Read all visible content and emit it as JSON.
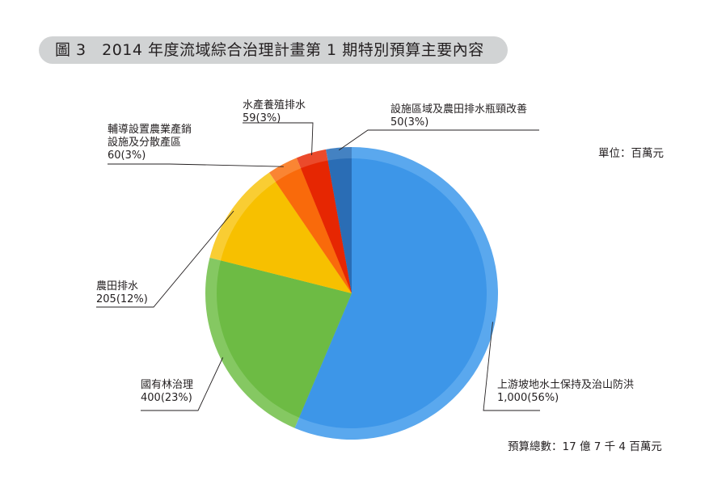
{
  "title": "圖 3　2014 年度流域綜合治理計畫第 1 期特別預算主要內容",
  "unit_label": "單位：百萬元",
  "total_label": "預算總數：17 億 7 千 4 百萬元",
  "chart_data": {
    "type": "pie",
    "title": "圖 3　2014 年度流域綜合治理計畫第 1 期特別預算主要內容",
    "unit": "單位：百萬元",
    "slices": [
      {
        "label": "上游坡地水土保持及治山防洪",
        "value": 1000,
        "value_text": "1,000(56%)",
        "color": "#3d96e8",
        "rim": "#5aa8ee"
      },
      {
        "label": "國有林治理",
        "value": 400,
        "value_text": "400(23%)",
        "color": "#6dbb44",
        "rim": "#85c862"
      },
      {
        "label": "農田排水",
        "value": 205,
        "value_text": "205(12%)",
        "color": "#f7c000",
        "rim": "#f9cd33"
      },
      {
        "label": "輔導設置農業產銷設施及分散產區",
        "label_lines": [
          "輔導設置農業產銷",
          "設施及分散產區"
        ],
        "value": 60,
        "value_text": "60(3%)",
        "color": "#f96a0b",
        "rim": "#fa8533"
      },
      {
        "label": "水產養殖排水",
        "value": 59,
        "value_text": "59(3%)",
        "color": "#e62602",
        "rim": "#eb4a2b"
      },
      {
        "label": "設施區域及農田排水瓶頸改善",
        "value": 50,
        "value_text": "50(3%)",
        "color": "#2a6db5",
        "rim": "#4482c2"
      }
    ],
    "start_angle_deg": 0,
    "direction": "clockwise",
    "legend": "none",
    "total": "預算總數：17 億 7 千 4 百萬元"
  }
}
